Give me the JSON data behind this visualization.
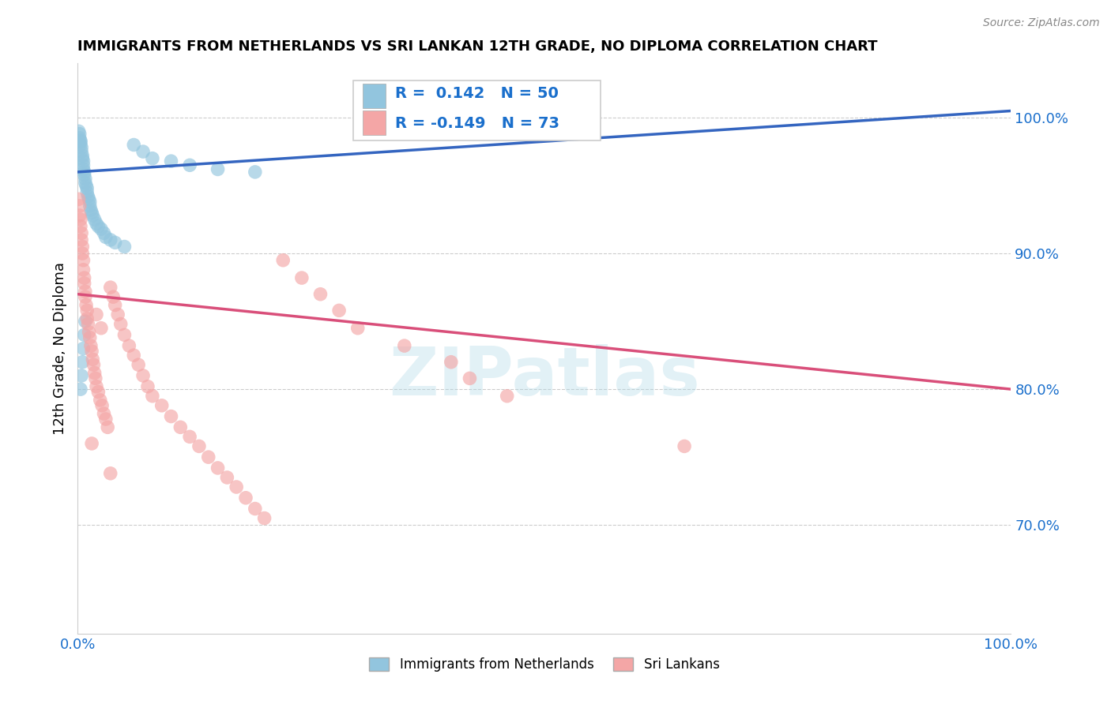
{
  "title": "IMMIGRANTS FROM NETHERLANDS VS SRI LANKAN 12TH GRADE, NO DIPLOMA CORRELATION CHART",
  "source_text": "Source: ZipAtlas.com",
  "ylabel": "12th Grade, No Diploma",
  "xlim": [
    0.0,
    1.0
  ],
  "ylim": [
    0.62,
    1.04
  ],
  "yticks": [
    0.7,
    0.8,
    0.9,
    1.0
  ],
  "ytick_labels": [
    "70.0%",
    "80.0%",
    "90.0%",
    "100.0%"
  ],
  "xtick_labels": [
    "0.0%",
    "100.0%"
  ],
  "xticks": [
    0.0,
    1.0
  ],
  "blue_R": 0.142,
  "blue_N": 50,
  "pink_R": -0.149,
  "pink_N": 73,
  "blue_color": "#92c5de",
  "pink_color": "#f4a6a6",
  "blue_line_color": "#3465c0",
  "pink_line_color": "#d94f7a",
  "watermark": "ZIPatlas",
  "legend_label_blue": "Immigrants from Netherlands",
  "legend_label_pink": "Sri Lankans",
  "blue_line_x0": 0.0,
  "blue_line_y0": 0.96,
  "blue_line_x1": 1.0,
  "blue_line_y1": 1.005,
  "pink_line_x0": 0.0,
  "pink_line_y0": 0.87,
  "pink_line_x1": 1.0,
  "pink_line_y1": 0.8,
  "blue_scatter_x": [
    0.001,
    0.002,
    0.002,
    0.003,
    0.003,
    0.003,
    0.004,
    0.004,
    0.005,
    0.005,
    0.006,
    0.006,
    0.006,
    0.007,
    0.007,
    0.008,
    0.008,
    0.009,
    0.01,
    0.01,
    0.011,
    0.012,
    0.013,
    0.013,
    0.014,
    0.015,
    0.016,
    0.018,
    0.02,
    0.022,
    0.025,
    0.028,
    0.03,
    0.035,
    0.04,
    0.05,
    0.06,
    0.07,
    0.08,
    0.1,
    0.12,
    0.15,
    0.003,
    0.004,
    0.005,
    0.006,
    0.007,
    0.008,
    0.19,
    0.34
  ],
  "blue_scatter_y": [
    0.99,
    0.988,
    0.985,
    0.983,
    0.98,
    0.982,
    0.978,
    0.975,
    0.972,
    0.97,
    0.968,
    0.965,
    0.962,
    0.96,
    0.958,
    0.955,
    0.952,
    0.95,
    0.948,
    0.945,
    0.942,
    0.94,
    0.938,
    0.935,
    0.932,
    0.93,
    0.928,
    0.925,
    0.922,
    0.92,
    0.918,
    0.915,
    0.912,
    0.91,
    0.908,
    0.905,
    0.98,
    0.975,
    0.97,
    0.968,
    0.965,
    0.962,
    0.8,
    0.81,
    0.82,
    0.83,
    0.84,
    0.85,
    0.96,
    1.0
  ],
  "pink_scatter_x": [
    0.001,
    0.002,
    0.002,
    0.003,
    0.003,
    0.004,
    0.004,
    0.005,
    0.005,
    0.006,
    0.006,
    0.007,
    0.007,
    0.008,
    0.008,
    0.009,
    0.01,
    0.01,
    0.011,
    0.012,
    0.013,
    0.014,
    0.015,
    0.016,
    0.017,
    0.018,
    0.019,
    0.02,
    0.022,
    0.024,
    0.026,
    0.028,
    0.03,
    0.032,
    0.035,
    0.038,
    0.04,
    0.043,
    0.046,
    0.05,
    0.055,
    0.06,
    0.065,
    0.07,
    0.075,
    0.08,
    0.09,
    0.1,
    0.11,
    0.12,
    0.13,
    0.14,
    0.15,
    0.16,
    0.17,
    0.18,
    0.19,
    0.2,
    0.22,
    0.24,
    0.26,
    0.28,
    0.3,
    0.35,
    0.4,
    0.42,
    0.46,
    0.02,
    0.025,
    0.015,
    0.035,
    0.5,
    0.65
  ],
  "pink_scatter_y": [
    0.94,
    0.935,
    0.928,
    0.925,
    0.92,
    0.915,
    0.91,
    0.905,
    0.9,
    0.895,
    0.888,
    0.882,
    0.878,
    0.872,
    0.868,
    0.862,
    0.858,
    0.852,
    0.848,
    0.842,
    0.838,
    0.832,
    0.828,
    0.822,
    0.818,
    0.812,
    0.808,
    0.802,
    0.798,
    0.792,
    0.788,
    0.782,
    0.778,
    0.772,
    0.875,
    0.868,
    0.862,
    0.855,
    0.848,
    0.84,
    0.832,
    0.825,
    0.818,
    0.81,
    0.802,
    0.795,
    0.788,
    0.78,
    0.772,
    0.765,
    0.758,
    0.75,
    0.742,
    0.735,
    0.728,
    0.72,
    0.712,
    0.705,
    0.895,
    0.882,
    0.87,
    0.858,
    0.845,
    0.832,
    0.82,
    0.808,
    0.795,
    0.855,
    0.845,
    0.76,
    0.738,
    1.0,
    0.758
  ]
}
